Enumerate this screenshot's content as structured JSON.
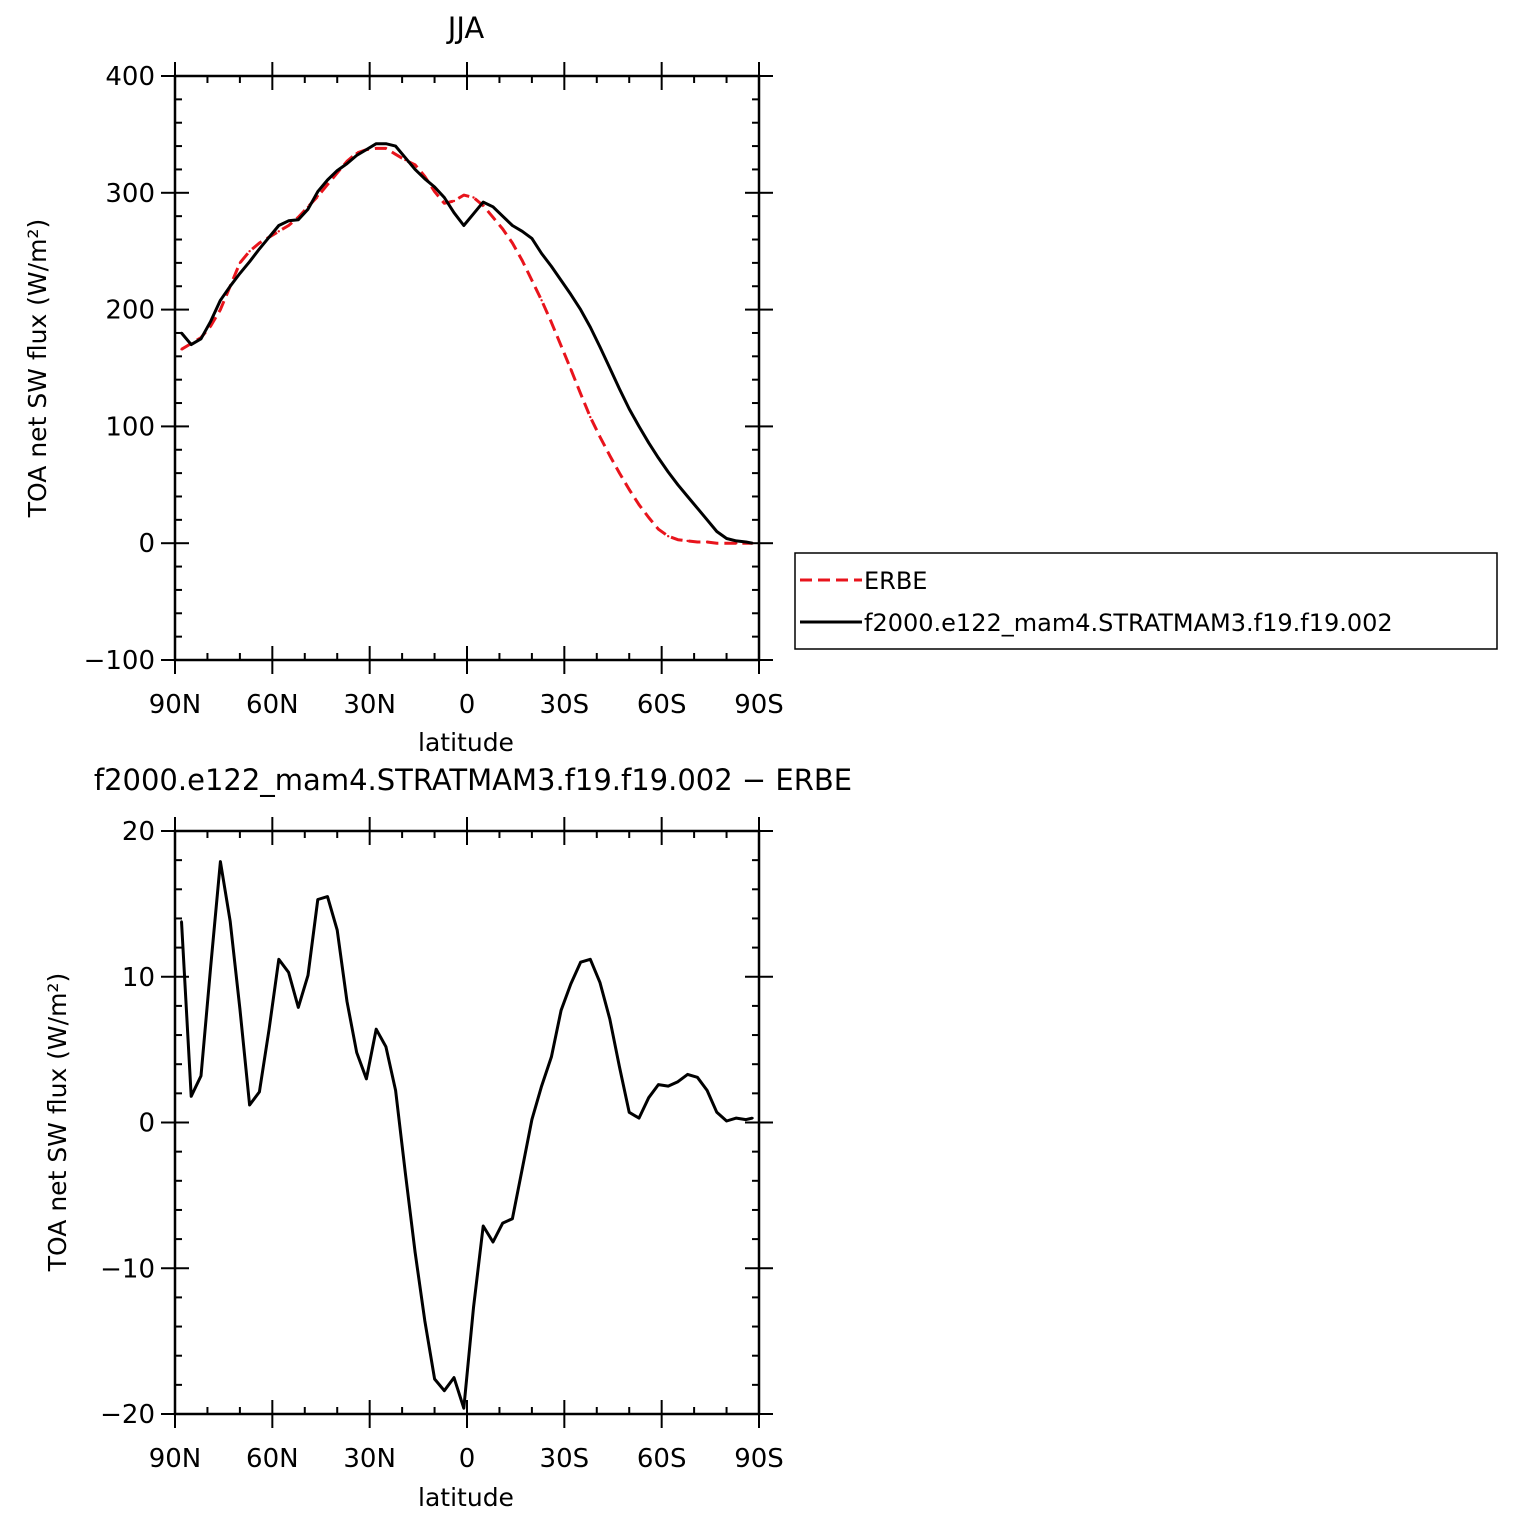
{
  "chart_data": [
    {
      "type": "line",
      "title": "JJA",
      "xlabel": "latitude",
      "ylabel": "TOA net SW flux (W/m²)",
      "xlim": [
        90,
        -90
      ],
      "ylim": [
        -100,
        400
      ],
      "xticks": [
        90,
        60,
        30,
        0,
        -30,
        -60,
        -90
      ],
      "xtick_labels": [
        "90N",
        "60N",
        "30N",
        "0",
        "30S",
        "60S",
        "90S"
      ],
      "yticks": [
        -100,
        0,
        100,
        200,
        300,
        400
      ],
      "ytick_labels": [
        "−100",
        "0",
        "100",
        "200",
        "300",
        "400"
      ],
      "grid": false,
      "legend_placement": "right",
      "series": [
        {
          "name": "ERBE",
          "color": "#e8141c",
          "dash": true,
          "x": [
            88,
            85,
            82,
            79,
            76,
            73,
            70,
            67,
            64,
            61,
            58,
            55,
            52,
            49,
            46,
            43,
            40,
            37,
            34,
            31,
            28,
            25,
            22,
            19,
            16,
            13,
            10,
            7,
            4,
            1,
            -2,
            -5,
            -8,
            -11,
            -14,
            -17,
            -20,
            -23,
            -26,
            -29,
            -32,
            -35,
            -38,
            -41,
            -44,
            -47,
            -50,
            -53,
            -56,
            -59,
            -62,
            -65,
            -68,
            -71,
            -74,
            -77,
            -80,
            -83,
            -86,
            -88
          ],
          "y": [
            166,
            171,
            176,
            186,
            200,
            220,
            240,
            250,
            257,
            262,
            267,
            272,
            279,
            288,
            297,
            307,
            317,
            327,
            334,
            337,
            338,
            338,
            333,
            328,
            324,
            314,
            301,
            291,
            293,
            298,
            296,
            289,
            279,
            269,
            257,
            242,
            225,
            208,
            189,
            169,
            149,
            128,
            108,
            91,
            75,
            60,
            46,
            33,
            22,
            12,
            6,
            3,
            2,
            1,
            1,
            0,
            0,
            0,
            0,
            0
          ]
        },
        {
          "name": "f2000.e122_mam4.STRATMAM3.f19.f19.002",
          "color": "#000000",
          "dash": false,
          "x": [
            88,
            85,
            82,
            79,
            76,
            73,
            70,
            67,
            64,
            61,
            58,
            55,
            52,
            49,
            46,
            43,
            40,
            37,
            34,
            31,
            28,
            25,
            22,
            19,
            16,
            13,
            10,
            7,
            4,
            1,
            -2,
            -5,
            -8,
            -11,
            -14,
            -17,
            -20,
            -23,
            -26,
            -29,
            -32,
            -35,
            -38,
            -41,
            -44,
            -47,
            -50,
            -53,
            -56,
            -59,
            -62,
            -65,
            -68,
            -71,
            -74,
            -77,
            -80,
            -83,
            -86,
            -88
          ],
          "y": [
            180,
            170,
            175,
            190,
            208,
            220,
            231,
            241,
            252,
            262,
            272,
            276,
            277,
            286,
            301,
            311,
            319,
            325,
            332,
            337,
            342,
            342,
            340,
            330,
            320,
            312,
            305,
            296,
            283,
            272,
            282,
            292,
            288,
            280,
            272,
            267,
            261,
            248,
            237,
            225,
            213,
            200,
            185,
            168,
            150,
            132,
            115,
            100,
            86,
            73,
            61,
            50,
            40,
            30,
            20,
            10,
            4,
            2,
            1,
            0
          ]
        }
      ]
    },
    {
      "type": "line",
      "title": "f2000.e122_mam4.STRATMAM3.f19.f19.002 − ERBE",
      "xlabel": "latitude",
      "ylabel": "TOA net SW flux (W/m²)",
      "xlim": [
        90,
        -90
      ],
      "ylim": [
        -20,
        20
      ],
      "xticks": [
        90,
        60,
        30,
        0,
        -30,
        -60,
        -90
      ],
      "xtick_labels": [
        "90N",
        "60N",
        "30N",
        "0",
        "30S",
        "60S",
        "90S"
      ],
      "yticks": [
        -20,
        -10,
        0,
        10,
        20
      ],
      "ytick_labels": [
        "−20",
        "−10",
        "0",
        "10",
        "20"
      ],
      "grid": false,
      "series": [
        {
          "color": "#000000",
          "dash": false,
          "x": [
            88,
            85,
            82,
            79,
            76,
            73,
            70,
            67,
            64,
            61,
            58,
            55,
            52,
            49,
            46,
            43,
            40,
            37,
            34,
            31,
            28,
            25,
            22,
            19,
            16,
            13,
            10,
            7,
            4,
            1,
            -2,
            -5,
            -8,
            -11,
            -14,
            -17,
            -20,
            -23,
            -26,
            -29,
            -32,
            -35,
            -38,
            -41,
            -44,
            -47,
            -50,
            -53,
            -56,
            -59,
            -62,
            -65,
            -68,
            -71,
            -74,
            -77,
            -80,
            -83,
            -86,
            -88
          ],
          "y": [
            13.8,
            1.8,
            3.2,
            10.7,
            17.9,
            13.8,
            7.8,
            1.2,
            2.1,
            6.4,
            11.2,
            10.3,
            7.9,
            10.1,
            15.3,
            15.5,
            13.2,
            8.3,
            4.8,
            3.0,
            6.4,
            5.2,
            2.2,
            -3.5,
            -8.9,
            -13.6,
            -17.6,
            -18.4,
            -17.5,
            -19.6,
            -12.7,
            -7.1,
            -8.2,
            -6.9,
            -6.6,
            -3.2,
            0.2,
            2.5,
            4.5,
            7.7,
            9.5,
            11.0,
            11.2,
            9.6,
            7.1,
            3.8,
            0.7,
            0.3,
            1.7,
            2.6,
            2.5,
            2.8,
            3.3,
            3.1,
            2.2,
            0.7,
            0.1,
            0.3,
            0.2,
            0.3
          ]
        }
      ]
    }
  ]
}
